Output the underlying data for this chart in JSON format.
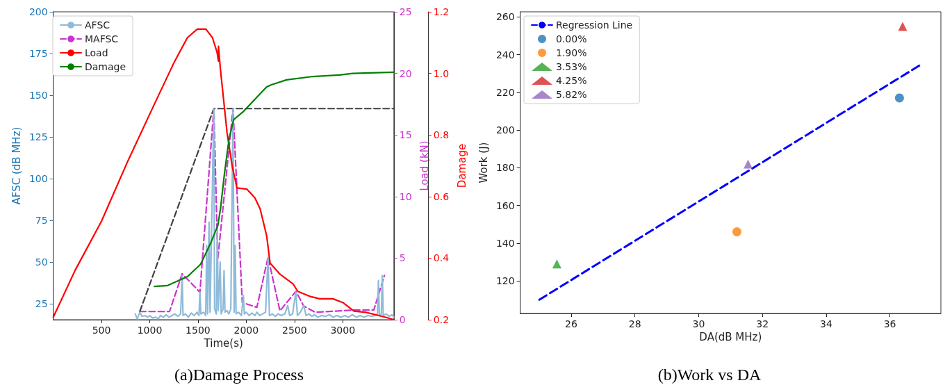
{
  "chart_data": [
    {
      "type": "line",
      "title": "(a)Damage Process",
      "xlabel": "Time(s)",
      "ylabel": "AFSC (dB MHz)",
      "y2label": "Load (kN)",
      "y3label": "Damage",
      "xlim": [
        0,
        3530
      ],
      "xticks": [
        500,
        1000,
        1500,
        2000,
        2500,
        3000
      ],
      "ylim": [
        15.5,
        200
      ],
      "yticks": [
        25,
        50,
        75,
        100,
        125,
        150,
        175,
        200
      ],
      "y2lim": [
        0,
        25
      ],
      "y2ticks": [
        0,
        5,
        10,
        15,
        20,
        25
      ],
      "y3lim": [
        0.2,
        1.2
      ],
      "y3ticks": [
        0.2,
        0.4,
        0.6,
        0.8,
        {
          "value": 1,
          "label": "1.0"
        },
        1.2
      ],
      "legend": "top left",
      "grid": false,
      "marker": "none",
      "series": [
        {
          "name": "AFSC",
          "color": "#8fbbd9",
          "line_style": "solid",
          "x": [
            850,
            870,
            897,
            920,
            950,
            980,
            1000,
            1030,
            1060,
            1090,
            1110,
            1140,
            1170,
            1200,
            1230,
            1260,
            1290,
            1320,
            1336,
            1345,
            1370,
            1400,
            1430,
            1460,
            1490,
            1510,
            1520,
            1530,
            1560,
            1580,
            1590,
            1600,
            1615,
            1625,
            1664,
            1672,
            1690,
            1700,
            1710,
            1730,
            1740,
            1760,
            1770,
            1780,
            1800,
            1820,
            1840,
            1863,
            1875,
            1885,
            1895,
            1920,
            1950,
            1970,
            1980,
            2000,
            2030,
            2060,
            2090,
            2110,
            2140,
            2170,
            2200,
            2226,
            2240,
            2270,
            2300,
            2330,
            2360,
            2400,
            2430,
            2450,
            2480,
            2514,
            2530,
            2560,
            2596,
            2620,
            2650,
            2680,
            2710,
            2740,
            2780,
            2820,
            2860,
            2900,
            2940,
            2980,
            3020,
            3060,
            3100,
            3140,
            3180,
            3220,
            3260,
            3300,
            3340,
            3360,
            3370,
            3380,
            3400,
            3410,
            3420,
            3450,
            3480,
            3510,
            3530
          ],
          "values": [
            19,
            16,
            20,
            17.5,
            18,
            17,
            18,
            16.5,
            17,
            16,
            18,
            17,
            18.5,
            17,
            18,
            19,
            17.5,
            19,
            42,
            18,
            19,
            17,
            19.5,
            18,
            20,
            18,
            32,
            19,
            20,
            18,
            60,
            19,
            74,
            20,
            142,
            22,
            19,
            70,
            21,
            50,
            19,
            22,
            45,
            20,
            21,
            19,
            22,
            142,
            20,
            60,
            19,
            20,
            18,
            30,
            19,
            20,
            18,
            19.5,
            18,
            20,
            18,
            19,
            20,
            53,
            18,
            19,
            17.5,
            19,
            18,
            19,
            24,
            18,
            19,
            32,
            18,
            20,
            24,
            18,
            19,
            17.5,
            18.5,
            17,
            18,
            17.5,
            18.5,
            17,
            18,
            17,
            18,
            17,
            18.5,
            17,
            18,
            17,
            18,
            17.5,
            18,
            19,
            39,
            18,
            19,
            42,
            18,
            19,
            17.5,
            18.5,
            17
          ]
        },
        {
          "name": "MAFSC",
          "color": "#cc33cc",
          "line_style": "dashed",
          "x": [
            897,
            1205,
            1336,
            1520,
            1664,
            1705,
            1863,
            1959,
            2110,
            2226,
            2349,
            2514,
            2596,
            2712,
            3123,
            3322,
            3432
          ],
          "values": [
            20.4,
            20.4,
            43,
            32,
            142,
            51.7,
            142,
            25.8,
            22.9,
            53,
            20.8,
            32.5,
            23.7,
            20,
            21.3,
            21.3,
            42
          ]
        },
        {
          "name": "Load",
          "color": "#ff0000",
          "line_style": "solid",
          "axis": "y2",
          "x": [
            0,
            226,
            500,
            774,
            1048,
            1253,
            1390,
            1493,
            1582,
            1650,
            1698,
            1712,
            1712,
            1733,
            1801,
            1856,
            1904,
            2007,
            2089,
            2144,
            2212,
            2247,
            2349,
            2486,
            2534,
            2658,
            2760,
            2897,
            3000,
            3116,
            3240,
            3445,
            3530
          ],
          "values": [
            0.2,
            4.0,
            8.0,
            12.9,
            17.5,
            20.9,
            22.9,
            23.6,
            23.6,
            22.9,
            21.7,
            21.0,
            22.2,
            20.3,
            15.2,
            12.4,
            10.7,
            10.6,
            9.9,
            9.0,
            6.8,
            4.6,
            3.7,
            2.9,
            2.3,
            1.9,
            1.7,
            1.7,
            1.4,
            0.7,
            0.6,
            0.2,
            0
          ]
        },
        {
          "name": "Damage",
          "color": "#008000",
          "line_style": "solid",
          "axis": "y3",
          "x": [
            1048,
            1185,
            1390,
            1527,
            1630,
            1705,
            1733,
            1774,
            1822,
            1870,
            1973,
            2075,
            2212,
            2260,
            2418,
            2692,
            2966,
            3103,
            3530
          ],
          "values": [
            0.308,
            0.311,
            0.34,
            0.38,
            0.448,
            0.505,
            0.56,
            0.674,
            0.787,
            0.85,
            0.877,
            0.911,
            0.956,
            0.963,
            0.979,
            0.99,
            0.995,
            1.0,
            1.004
          ]
        },
        {
          "color": "#404040",
          "line_style": "dashed",
          "x": [
            897,
            1664,
            3530
          ],
          "values": [
            20.4,
            142,
            142
          ]
        }
      ]
    },
    {
      "type": "scatter",
      "title": "(b)Work vs DA",
      "xlabel": "DA(dB MHz)",
      "ylabel": "Work (J)",
      "xlim": [
        24.4,
        37.6
      ],
      "xticks": [
        26,
        28,
        30,
        32,
        34,
        36
      ],
      "ylim": [
        102.7,
        262.7
      ],
      "yticks": [
        120,
        140,
        160,
        180,
        200,
        220,
        240,
        260
      ],
      "legend": "top left",
      "grid": false,
      "series": [
        {
          "name": "Regression Line",
          "type": "line",
          "color": "#0000ff",
          "line_style": "dashed",
          "marker": "none",
          "x": [
            25,
            37
          ],
          "values": [
            110,
            235
          ]
        },
        {
          "name": "0.00%",
          "color": "#1f77b4",
          "marker": "circle",
          "x": [
            36.3
          ],
          "values": [
            217
          ]
        },
        {
          "name": "1.90%",
          "color": "#ff7f0e",
          "marker": "circle",
          "x": [
            31.2
          ],
          "values": [
            146
          ]
        },
        {
          "name": "3.53%",
          "color": "#2ca02c",
          "marker": "triangle",
          "x": [
            25.55
          ],
          "values": [
            129
          ]
        },
        {
          "name": "4.25%",
          "color": "#d62728",
          "marker": "triangle",
          "x": [
            36.4
          ],
          "values": [
            255
          ]
        },
        {
          "name": "5.82%",
          "color": "#9467bd",
          "marker": "triangle",
          "x": [
            31.55
          ],
          "values": [
            182
          ]
        }
      ]
    }
  ]
}
